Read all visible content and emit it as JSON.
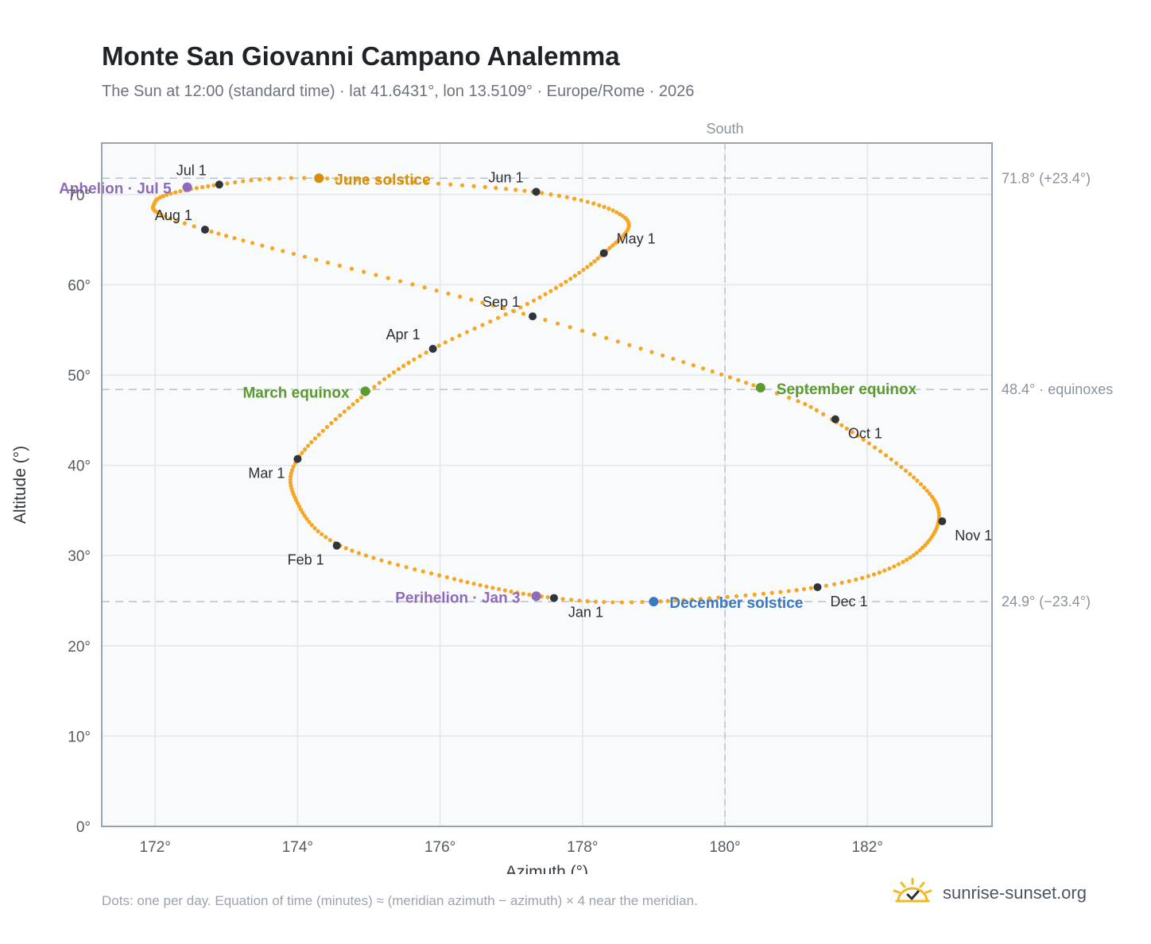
{
  "header": {
    "title": "Monte San Giovanni Campano Analemma",
    "subtitle": "The Sun at 12:00 (standard time) · lat 41.6431°, lon 13.5109° · Europe/Rome · 2026"
  },
  "footer": {
    "note": "Dots: one per day. Equation of time (minutes) ≈ (meridian azimuth − azimuth) × 4 near the meridian.",
    "brand": "sunrise-sunset.org"
  },
  "colors": {
    "path": "#f5a623",
    "month_marker": "#2f343b",
    "equinox": "#5a9a2e",
    "june_solstice": "#d4900a",
    "december_solstice": "#3a78c2",
    "apsis": "#8e6bb8",
    "grid": "#e3e6ea",
    "reference_line": "#b8c2cc",
    "plot_background": "#f8fafc",
    "frame": "#9aa4b0"
  },
  "chart_data": {
    "type": "scatter",
    "title": "Monte San Giovanni Campano Analemma",
    "xlabel": "Azimuth (°)",
    "ylabel": "Altitude (°)",
    "xlim": [
      171.25,
      183.75
    ],
    "ylim": [
      0,
      75.7
    ],
    "xticks": [
      172,
      174,
      176,
      178,
      180,
      182
    ],
    "xtick_labels": [
      "172°",
      "174°",
      "176°",
      "178°",
      "180°",
      "182°"
    ],
    "yticks": [
      0,
      10,
      20,
      30,
      40,
      50,
      60,
      70
    ],
    "ytick_labels": [
      "0°",
      "10°",
      "20°",
      "30°",
      "40°",
      "50°",
      "60°",
      "70°"
    ],
    "grid": true,
    "meridian": {
      "azimuth": 180,
      "label": "South"
    },
    "reference_lines": [
      {
        "altitude": 71.8,
        "label": "71.8° (+23.4°)"
      },
      {
        "altitude": 48.4,
        "label": "48.4° · equinoxes"
      },
      {
        "altitude": 24.9,
        "label": "24.9° (−23.4°)"
      }
    ],
    "daily_path_anchors": [
      {
        "day": 0,
        "az": 177.6,
        "alt": 25.3
      },
      {
        "day": 16,
        "az": 176.2,
        "alt": 27.4
      },
      {
        "day": 31,
        "az": 174.6,
        "alt": 31.1
      },
      {
        "day": 45,
        "az": 174.0,
        "alt": 35.8
      },
      {
        "day": 59,
        "az": 174.0,
        "alt": 40.7
      },
      {
        "day": 78,
        "az": 175.0,
        "alt": 48.2
      },
      {
        "day": 90,
        "az": 175.9,
        "alt": 52.9
      },
      {
        "day": 105,
        "az": 177.4,
        "alt": 58.6
      },
      {
        "day": 120,
        "az": 178.3,
        "alt": 63.5
      },
      {
        "day": 135,
        "az": 178.6,
        "alt": 67.4
      },
      {
        "day": 151,
        "az": 177.3,
        "alt": 70.3
      },
      {
        "day": 171,
        "az": 174.3,
        "alt": 71.8
      },
      {
        "day": 181,
        "az": 172.9,
        "alt": 71.1
      },
      {
        "day": 196,
        "az": 172.0,
        "alt": 69.2
      },
      {
        "day": 212,
        "az": 172.7,
        "alt": 66.1
      },
      {
        "day": 243,
        "az": 177.3,
        "alt": 56.5
      },
      {
        "day": 265,
        "az": 180.5,
        "alt": 48.6
      },
      {
        "day": 273,
        "az": 181.5,
        "alt": 45.1
      },
      {
        "day": 290,
        "az": 182.7,
        "alt": 38.3
      },
      {
        "day": 304,
        "az": 183.0,
        "alt": 33.8
      },
      {
        "day": 320,
        "az": 182.5,
        "alt": 29.3
      },
      {
        "day": 334,
        "az": 181.3,
        "alt": 26.5
      },
      {
        "day": 354,
        "az": 179.0,
        "alt": 24.9
      },
      {
        "day": 365,
        "az": 177.6,
        "alt": 25.3
      }
    ],
    "month_markers": [
      {
        "label": "Jan 1",
        "az": 177.6,
        "alt": 25.3
      },
      {
        "label": "Feb 1",
        "az": 174.55,
        "alt": 31.1
      },
      {
        "label": "Mar 1",
        "az": 174.0,
        "alt": 40.7
      },
      {
        "label": "Apr 1",
        "az": 175.9,
        "alt": 52.9
      },
      {
        "label": "May 1",
        "az": 178.3,
        "alt": 63.5
      },
      {
        "label": "Jun 1",
        "az": 177.35,
        "alt": 70.3
      },
      {
        "label": "Jul 1",
        "az": 172.9,
        "alt": 71.1
      },
      {
        "label": "Aug 1",
        "az": 172.7,
        "alt": 66.1
      },
      {
        "label": "Sep 1",
        "az": 177.3,
        "alt": 56.5
      },
      {
        "label": "Oct 1",
        "az": 181.55,
        "alt": 45.1
      },
      {
        "label": "Nov 1",
        "az": 183.05,
        "alt": 33.8
      },
      {
        "label": "Dec 1",
        "az": 181.3,
        "alt": 26.5
      }
    ],
    "events": [
      {
        "label": "March equinox",
        "az": 174.95,
        "alt": 48.2,
        "kind": "equinox"
      },
      {
        "label": "June solstice",
        "az": 174.3,
        "alt": 71.8,
        "kind": "june_solstice"
      },
      {
        "label": "September equinox",
        "az": 180.5,
        "alt": 48.6,
        "kind": "equinox"
      },
      {
        "label": "December solstice",
        "az": 179.0,
        "alt": 24.9,
        "kind": "december_solstice"
      },
      {
        "label": "Perihelion · Jan 3",
        "az": 177.35,
        "alt": 25.5,
        "kind": "apsis"
      },
      {
        "label": "Aphelion · Jul 5",
        "az": 172.45,
        "alt": 70.8,
        "kind": "apsis"
      }
    ]
  }
}
